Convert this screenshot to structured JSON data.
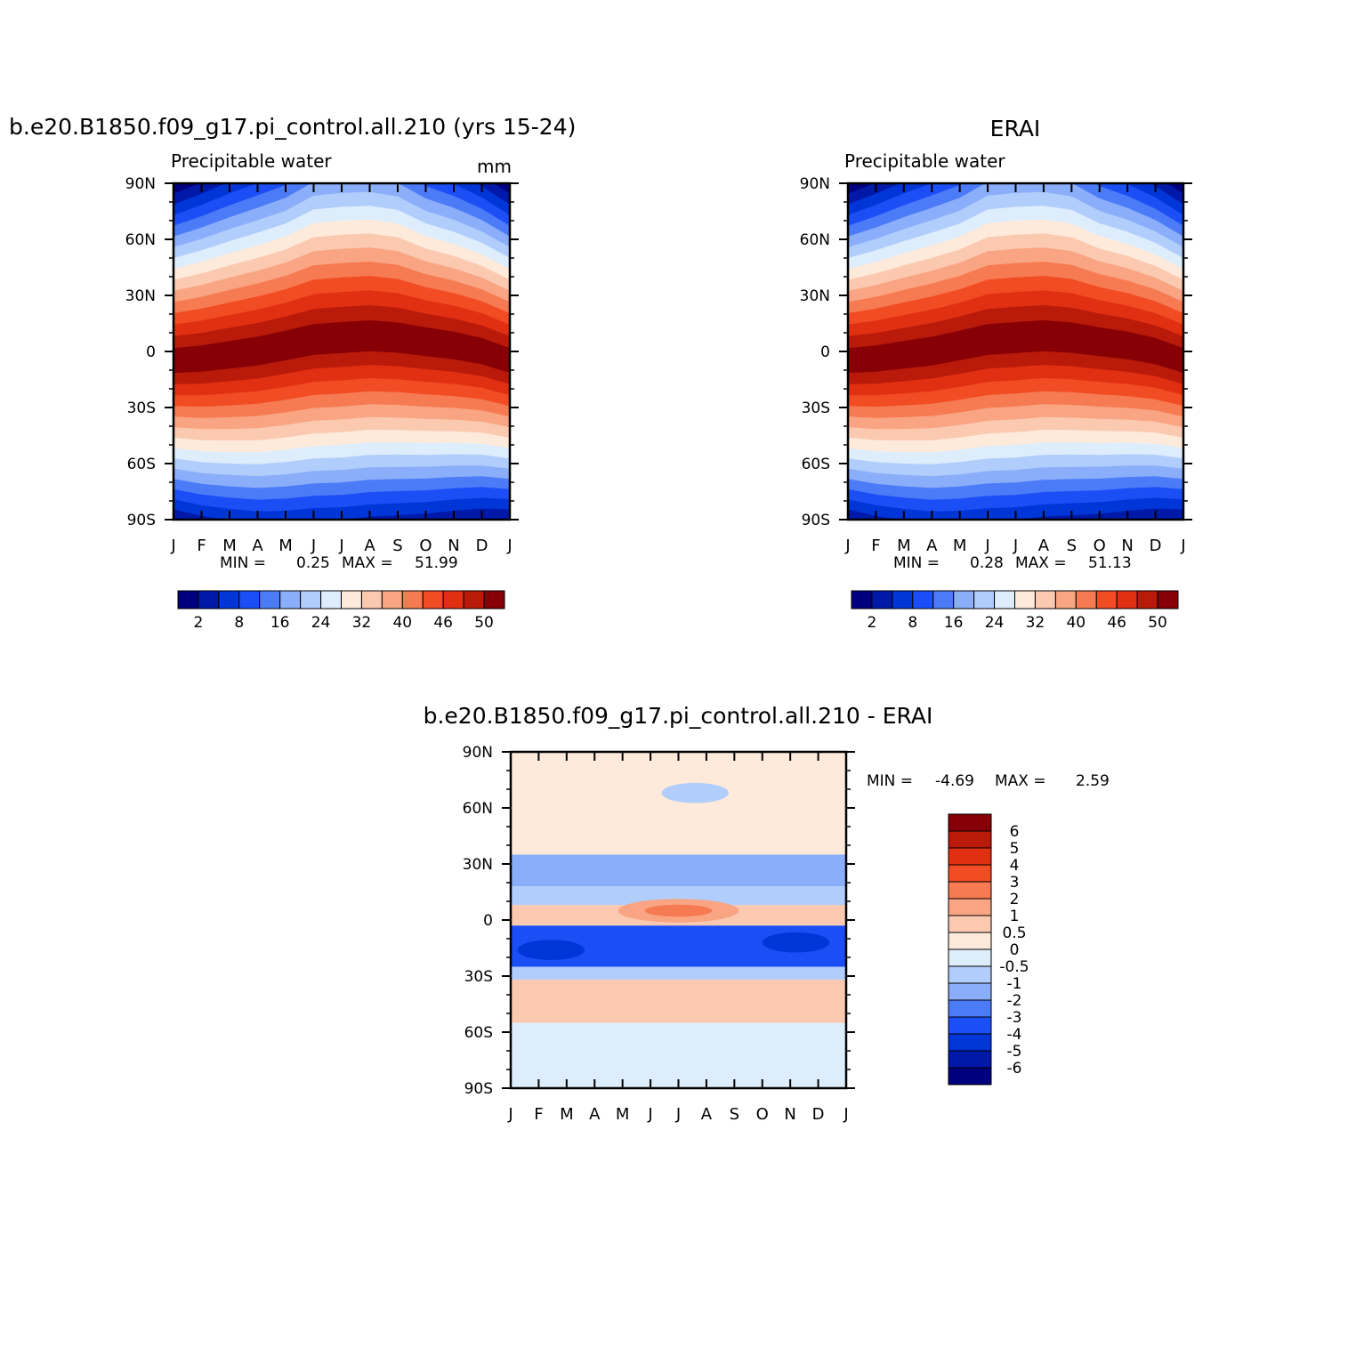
{
  "chart_data": [
    {
      "type": "heatmap",
      "title": "b.e20.B1850.f09_g17.pi_control.all.210 (yrs 15-24)",
      "left_label": "Precipitable water",
      "right_label": "mm",
      "x_ticklabels": [
        "J",
        "F",
        "M",
        "A",
        "M",
        "J",
        "J",
        "A",
        "S",
        "O",
        "N",
        "D",
        "J"
      ],
      "y_ticklabels": [
        "90N",
        "60N",
        "30N",
        "0",
        "30S",
        "60S",
        "90S"
      ],
      "ylim": [
        -90,
        90
      ],
      "stats": {
        "min_label": "MIN =",
        "min": "0.25",
        "max_label": "MAX =",
        "max": "51.99"
      },
      "colorbar": {
        "levels": [
          "2",
          "8",
          "16",
          "24",
          "32",
          "40",
          "46",
          "50"
        ],
        "colors": [
          "#00007F",
          "#0019A8",
          "#0036D8",
          "#1C4EF5",
          "#4C7BF7",
          "#8AAEF9",
          "#B1CDFB",
          "#DDEDFC",
          "#FDEADB",
          "#FBC9B0",
          "#F9A482",
          "#F67A52",
          "#F14C23",
          "#E12F12",
          "#B91A0A",
          "#860006"
        ]
      },
      "season_peak_lat": {
        "months": [
          "J",
          "F",
          "M",
          "A",
          "M",
          "J",
          "J",
          "A",
          "S",
          "O",
          "N",
          "D",
          "J"
        ],
        "lat": [
          -5,
          -4,
          -2,
          0,
          3,
          6,
          7,
          8,
          7,
          5,
          3,
          0,
          -5
        ]
      }
    },
    {
      "type": "heatmap",
      "title": "ERAI",
      "left_label": "Precipitable water",
      "right_label": "",
      "x_ticklabels": [
        "J",
        "F",
        "M",
        "A",
        "M",
        "J",
        "J",
        "A",
        "S",
        "O",
        "N",
        "D",
        "J"
      ],
      "y_ticklabels": [
        "90N",
        "60N",
        "30N",
        "0",
        "30S",
        "60S",
        "90S"
      ],
      "ylim": [
        -90,
        90
      ],
      "stats": {
        "min_label": "MIN =",
        "min": "0.28",
        "max_label": "MAX =",
        "max": "51.13"
      },
      "colorbar": {
        "levels": [
          "2",
          "8",
          "16",
          "24",
          "32",
          "40",
          "46",
          "50"
        ],
        "colors": [
          "#00007F",
          "#0019A8",
          "#0036D8",
          "#1C4EF5",
          "#4C7BF7",
          "#8AAEF9",
          "#B1CDFB",
          "#DDEDFC",
          "#FDEADB",
          "#FBC9B0",
          "#F9A482",
          "#F67A52",
          "#F14C23",
          "#E12F12",
          "#B91A0A",
          "#860006"
        ]
      },
      "season_peak_lat": {
        "months": [
          "J",
          "F",
          "M",
          "A",
          "M",
          "J",
          "J",
          "A",
          "S",
          "O",
          "N",
          "D",
          "J"
        ],
        "lat": [
          -5,
          -4,
          -2,
          0,
          3,
          6,
          7,
          8,
          7,
          5,
          3,
          0,
          -5
        ]
      }
    },
    {
      "type": "heatmap",
      "title": "b.e20.B1850.f09_g17.pi_control.all.210 - ERAI",
      "left_label": "",
      "right_label": "",
      "x_ticklabels": [
        "J",
        "F",
        "M",
        "A",
        "M",
        "J",
        "J",
        "A",
        "S",
        "O",
        "N",
        "D",
        "J"
      ],
      "y_ticklabels": [
        "90N",
        "60N",
        "30N",
        "0",
        "30S",
        "60S",
        "90S"
      ],
      "ylim": [
        -90,
        90
      ],
      "stats": {
        "min_label": "MIN =",
        "min": "-4.69",
        "max_label": "MAX =",
        "max": "2.59"
      },
      "colorbar": {
        "levels": [
          "6",
          "5",
          "4",
          "3",
          "2",
          "1",
          "0.5",
          "0",
          "-0.5",
          "-1",
          "-2",
          "-3",
          "-4",
          "-5",
          "-6"
        ],
        "colors": [
          "#860006",
          "#B91A0A",
          "#E12F12",
          "#F14C23",
          "#F67A52",
          "#F9A482",
          "#FBC9B0",
          "#FDEADB",
          "#DDEDFC",
          "#B1CDFB",
          "#8AAEF9",
          "#4C7BF7",
          "#1C4EF5",
          "#0036D8",
          "#0019A8",
          "#00007F"
        ]
      },
      "diff_bands": [
        {
          "lat": [
            90,
            35
          ],
          "value": 0.3
        },
        {
          "lat": [
            35,
            18
          ],
          "value": -2
        },
        {
          "lat": [
            18,
            8
          ],
          "value": -1
        },
        {
          "lat": [
            8,
            -3
          ],
          "value": 0.5
        },
        {
          "lat": [
            -3,
            -25
          ],
          "value": -3.5
        },
        {
          "lat": [
            -25,
            -32
          ],
          "value": -1
        },
        {
          "lat": [
            -32,
            -55
          ],
          "value": 0.5
        },
        {
          "lat": [
            -55,
            -90
          ],
          "value": -0.3
        }
      ]
    }
  ]
}
